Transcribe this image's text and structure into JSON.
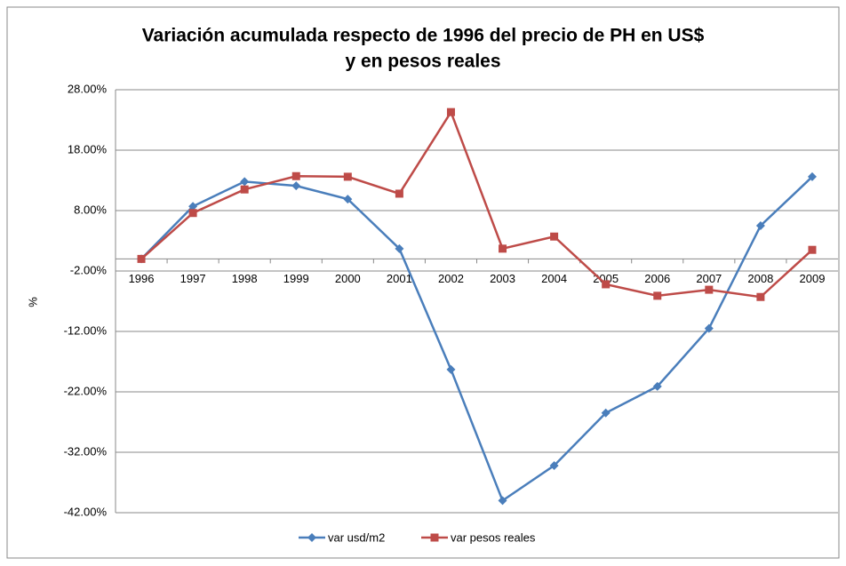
{
  "chart_data": {
    "type": "line",
    "title": [
      "Variación acumulada respecto de 1996 del precio de PH en US$",
      "y en pesos reales"
    ],
    "y_label": "%",
    "categories": [
      "1996",
      "1997",
      "1998",
      "1999",
      "2000",
      "2001",
      "2002",
      "2003",
      "2004",
      "2005",
      "2006",
      "2007",
      "2008",
      "2009"
    ],
    "series": [
      {
        "name": "var usd/m2",
        "color": "#4a7ebb",
        "marker": "diamond",
        "values": [
          0,
          8.7,
          12.8,
          12.1,
          9.9,
          1.7,
          -18.3,
          -40,
          -34.2,
          -25.5,
          -21.1,
          -11.5,
          5.5,
          13.6
        ]
      },
      {
        "name": "var pesos reales",
        "color": "#be4b48",
        "marker": "square",
        "values": [
          0,
          7.6,
          11.5,
          13.7,
          13.6,
          10.8,
          24.3,
          1.7,
          3.7,
          -4.2,
          -6.1,
          -5.1,
          -6.3,
          1.5
        ]
      }
    ],
    "ylim": [
      -42,
      28
    ],
    "yticks": [
      {
        "value": -42,
        "label": "-42.00%"
      },
      {
        "value": -32,
        "label": "-32.00%"
      },
      {
        "value": -22,
        "label": "-22.00%"
      },
      {
        "value": -12,
        "label": "-12.00%"
      },
      {
        "value": -2,
        "label": "-2.00%"
      },
      {
        "value": 8,
        "label": "8.00%"
      },
      {
        "value": 18,
        "label": "18.00%"
      },
      {
        "value": 28,
        "label": "28.00%"
      }
    ],
    "grid": true,
    "legend": "bottom"
  }
}
